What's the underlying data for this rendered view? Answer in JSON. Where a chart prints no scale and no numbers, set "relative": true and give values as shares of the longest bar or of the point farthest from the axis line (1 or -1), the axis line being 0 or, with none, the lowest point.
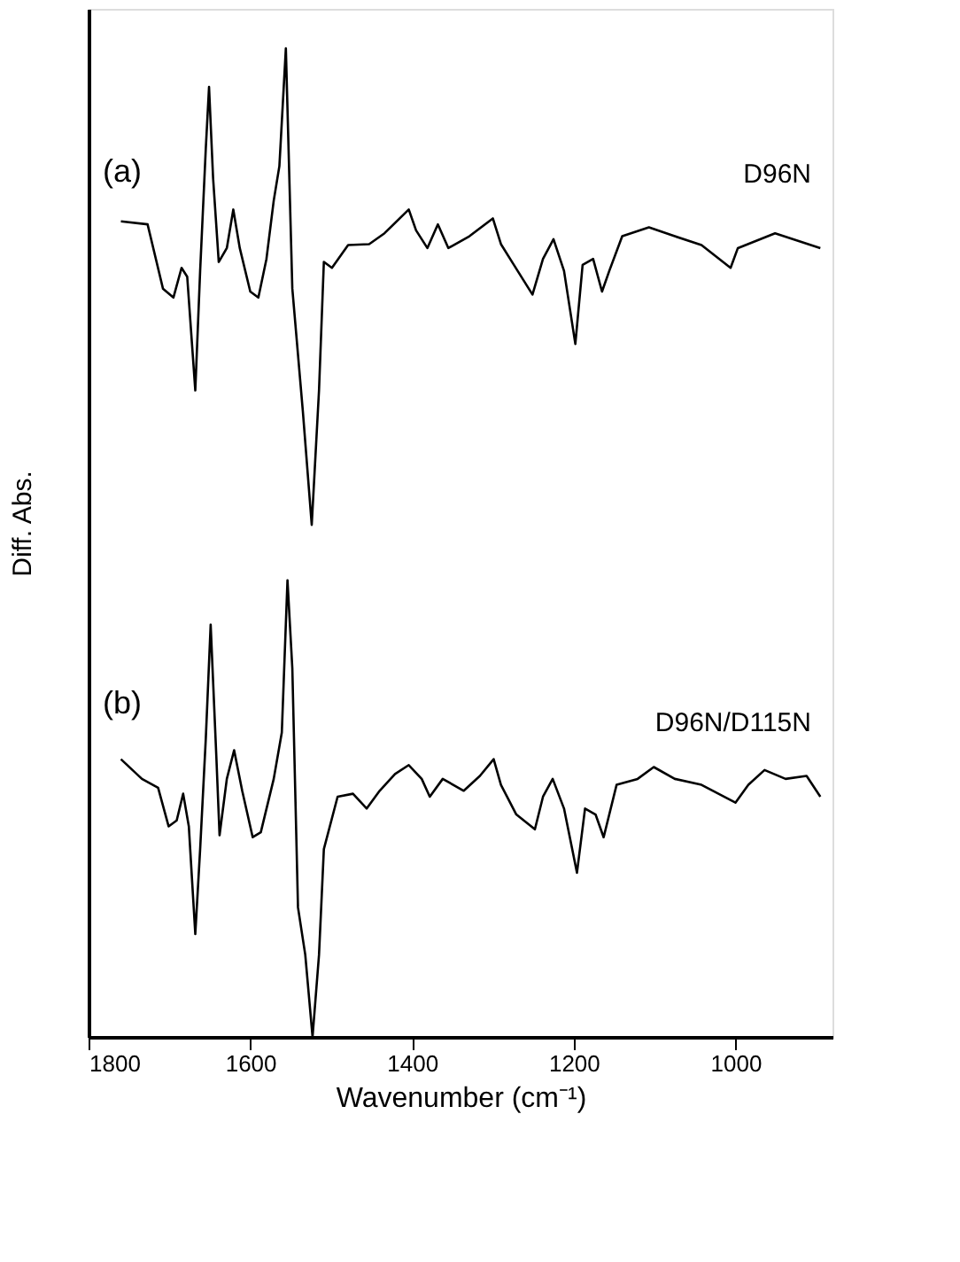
{
  "chart_data": {
    "type": "line",
    "relative": true,
    "xlabel": "Wavenumber (cm⁻¹)",
    "ylabel": "Diff. Abs.",
    "xlim": [
      1800,
      880
    ],
    "xticks": [
      1800,
      1600,
      1400,
      1200,
      1000
    ],
    "grid": false,
    "marker": "none",
    "line_style": "solid",
    "annotations": [
      "(a)",
      "(b)"
    ],
    "series": [
      {
        "name": "D96N",
        "color": "#000000",
        "x": [
          1760,
          1727,
          1708,
          1695,
          1685,
          1678,
          1668,
          1662,
          1655,
          1651,
          1646,
          1639,
          1629,
          1621,
          1613,
          1600,
          1590,
          1580,
          1571,
          1564,
          1556,
          1548,
          1535,
          1524,
          1515,
          1509,
          1499,
          1479,
          1453,
          1434,
          1404,
          1395,
          1381,
          1368,
          1355,
          1329,
          1300,
          1290,
          1274,
          1251,
          1238,
          1225,
          1212,
          1198,
          1189,
          1176,
          1165,
          1156,
          1140,
          1107,
          1075,
          1042,
          1006,
          997,
          951,
          895
        ],
        "values": [
          0.825,
          0.822,
          0.757,
          0.748,
          0.778,
          0.769,
          0.654,
          0.775,
          0.899,
          0.961,
          0.869,
          0.784,
          0.798,
          0.837,
          0.798,
          0.754,
          0.748,
          0.787,
          0.846,
          0.881,
          1.0,
          0.757,
          0.633,
          0.518,
          0.654,
          0.784,
          0.778,
          0.801,
          0.802,
          0.813,
          0.837,
          0.816,
          0.798,
          0.822,
          0.798,
          0.81,
          0.828,
          0.802,
          0.781,
          0.751,
          0.787,
          0.807,
          0.775,
          0.701,
          0.781,
          0.787,
          0.754,
          0.775,
          0.81,
          0.819,
          0.81,
          0.801,
          0.778,
          0.798,
          0.813,
          0.798
        ]
      },
      {
        "name": "D96N/D115N",
        "color": "#000000",
        "x": [
          1760,
          1734,
          1714,
          1701,
          1691,
          1683,
          1676,
          1668,
          1662,
          1655,
          1649,
          1642,
          1638,
          1629,
          1620,
          1610,
          1597,
          1587,
          1571,
          1561,
          1554,
          1548,
          1541,
          1532,
          1523,
          1515,
          1509,
          1492,
          1473,
          1456,
          1440,
          1421,
          1404,
          1388,
          1378,
          1362,
          1336,
          1316,
          1299,
          1290,
          1271,
          1248,
          1238,
          1226,
          1212,
          1196,
          1186,
          1173,
          1163,
          1147,
          1121,
          1101,
          1075,
          1042,
          1000,
          984,
          964,
          938,
          912,
          895
        ],
        "values": [
          0.281,
          0.261,
          0.252,
          0.213,
          0.219,
          0.246,
          0.213,
          0.104,
          0.19,
          0.302,
          0.417,
          0.284,
          0.204,
          0.261,
          0.29,
          0.249,
          0.202,
          0.207,
          0.261,
          0.308,
          0.462,
          0.373,
          0.131,
          0.083,
          0.0,
          0.083,
          0.19,
          0.243,
          0.246,
          0.231,
          0.249,
          0.266,
          0.275,
          0.261,
          0.243,
          0.261,
          0.249,
          0.264,
          0.281,
          0.255,
          0.225,
          0.21,
          0.243,
          0.261,
          0.231,
          0.166,
          0.231,
          0.225,
          0.202,
          0.255,
          0.261,
          0.273,
          0.261,
          0.255,
          0.237,
          0.255,
          0.27,
          0.261,
          0.264,
          0.243
        ]
      }
    ]
  }
}
